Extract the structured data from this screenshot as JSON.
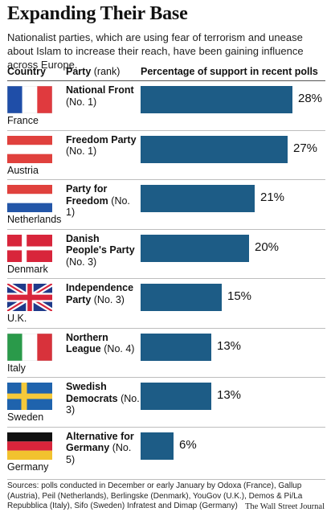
{
  "header": {
    "title": "Expanding Their Base",
    "subtitle": "Nationalist parties, which are using fear of terrorism and unease about Islam to increase their reach, have been gaining influence across Europe."
  },
  "columns": {
    "country": "Country",
    "party": "Party",
    "party_suffix": "(rank)",
    "percentage": "Percentage of support in recent polls"
  },
  "chart_data": {
    "type": "bar",
    "orientation": "horizontal",
    "title": "Expanding Their Base",
    "xlabel": "Percentage of support in recent polls",
    "xlim": [
      0,
      34
    ],
    "grid": false,
    "categories": [
      "France",
      "Austria",
      "Netherlands",
      "Denmark",
      "U.K.",
      "Italy",
      "Sweden",
      "Germany"
    ],
    "parties": [
      {
        "name": "National Front",
        "rank": "(No. 1)"
      },
      {
        "name": "Freedom Party",
        "rank": "(No. 1)"
      },
      {
        "name": "Party for Freedom",
        "rank": "(No. 1)"
      },
      {
        "name": "Danish People's Party",
        "rank": "(No. 3)"
      },
      {
        "name": "Independence Party",
        "rank": "(No. 3)"
      },
      {
        "name": "Northern League",
        "rank": "(No. 4)"
      },
      {
        "name": "Swedish Democrats",
        "rank": "(No. 3)"
      },
      {
        "name": "Alternative for Germany",
        "rank": "(No. 5)"
      }
    ],
    "values": [
      28,
      27,
      21,
      20,
      15,
      13,
      13,
      6
    ],
    "labels": [
      "28%",
      "27%",
      "21%",
      "20%",
      "15%",
      "13%",
      "13%",
      "6%"
    ],
    "bar_color": "#1d5c86",
    "flags": [
      "france-flag",
      "austria-flag",
      "netherlands-flag",
      "denmark-flag",
      "uk-flag",
      "italy-flag",
      "sweden-flag",
      "germany-flag"
    ]
  },
  "footer": {
    "sources": "Sources: polls conducted in December or early January by Odoxa (France), Gallup (Austria), Peil (Netherlands), Berlingske (Denmark), YouGov (U.K.), Demos & Pi/La Repubblica (Italy), Sifo (Sweden) Infratest and Dimap (Germany)",
    "credit": "The Wall Street Journal"
  },
  "colors": {
    "bar": "#1d5c86",
    "rule": "#bdbdbd"
  }
}
